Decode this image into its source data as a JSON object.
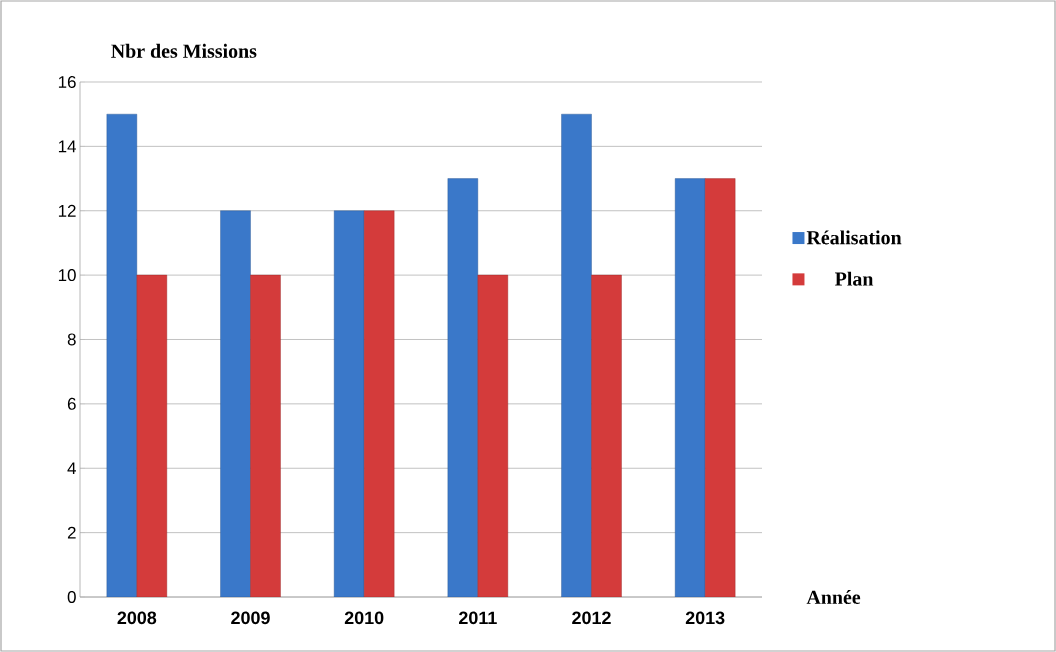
{
  "chart_data": {
    "type": "bar",
    "ylabel": "Nbr des Missions",
    "xlabel": "Année",
    "categories": [
      "2008",
      "2009",
      "2010",
      "2011",
      "2012",
      "2013"
    ],
    "series": [
      {
        "name": "Réalisation",
        "color": "#3a78c9",
        "values": [
          15,
          12,
          12,
          13,
          15,
          13
        ]
      },
      {
        "name": "Plan",
        "color": "#d43b3b",
        "values": [
          10,
          10,
          12,
          10,
          10,
          13
        ]
      }
    ],
    "ylim": [
      0,
      16
    ],
    "yticks": [
      0,
      2,
      4,
      6,
      8,
      10,
      12,
      14,
      16
    ],
    "grid": "y",
    "legend": "right"
  }
}
